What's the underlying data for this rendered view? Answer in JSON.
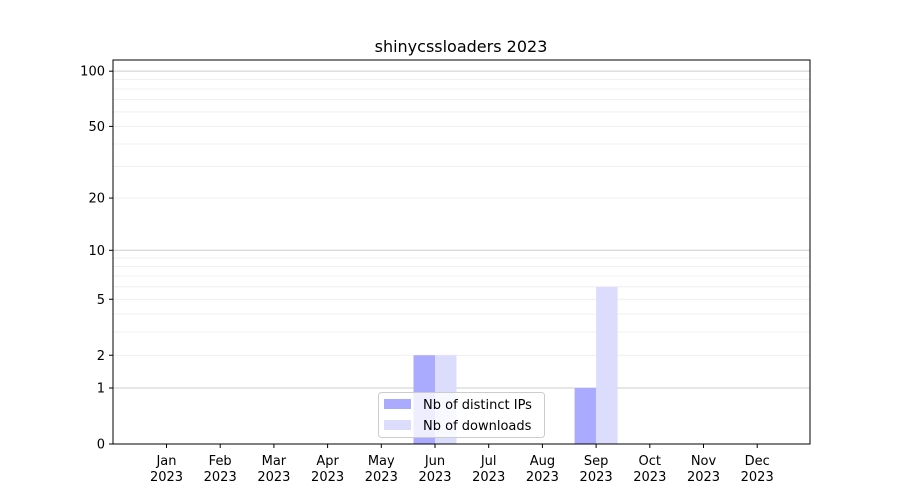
{
  "chart_data": {
    "type": "bar",
    "title": "shinycssloaders 2023",
    "xlabel": "",
    "ylabel": "",
    "yscale": "log(1+y)",
    "ylim": [
      0,
      115
    ],
    "grid": true,
    "legend_position": "bottom-center",
    "categories": [
      "Jan\n2023",
      "Feb\n2023",
      "Mar\n2023",
      "Apr\n2023",
      "May\n2023",
      "Jun\n2023",
      "Jul\n2023",
      "Aug\n2023",
      "Sep\n2023",
      "Oct\n2023",
      "Nov\n2023",
      "Dec\n2023"
    ],
    "yticks": [
      0,
      1,
      2,
      5,
      10,
      20,
      50,
      100
    ],
    "series": [
      {
        "name": "Nb of distinct IPs",
        "color": "#aaaaff",
        "values": [
          0,
          0,
          0,
          0,
          0,
          2,
          0,
          0,
          1,
          0,
          0,
          0
        ]
      },
      {
        "name": "Nb of downloads",
        "color": "#dcdcfc",
        "values": [
          0,
          0,
          0,
          0,
          0,
          2,
          0,
          0,
          6,
          0,
          0,
          0
        ]
      }
    ]
  }
}
